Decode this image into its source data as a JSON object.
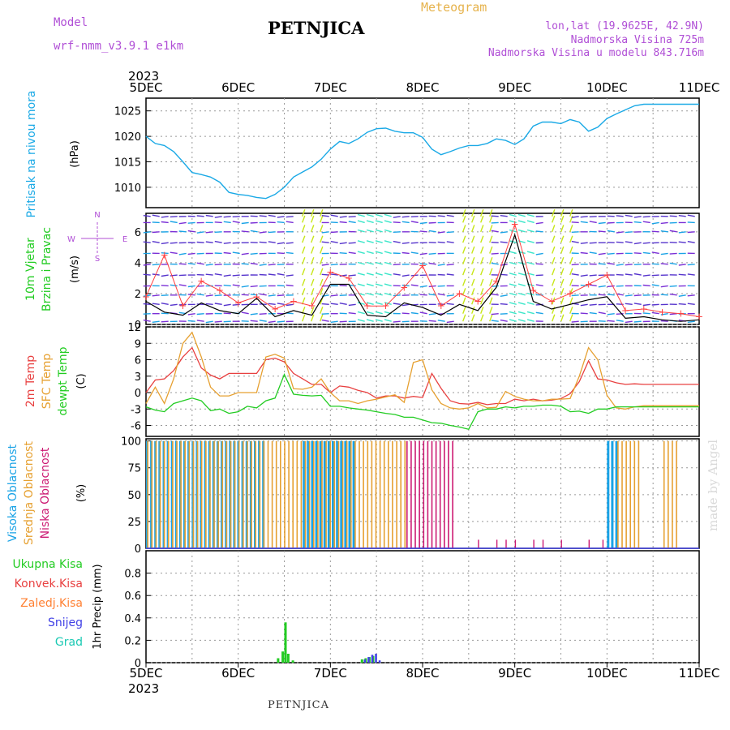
{
  "header": {
    "station": "PETNJICA",
    "meteogram": "Meteogram",
    "model_label": "Model",
    "model_name": "wrf-nmm_v3.9.1 e1km",
    "lonlat": "lon,lat (19.9625E, 42.9N)",
    "altitude": "Nadmorska Visina 725m",
    "model_altitude": "Nadmorska Visina u modelu 843.716m",
    "bottom_station": "PETNJICA",
    "watermark": "made by Angel"
  },
  "colors": {
    "pressure": "#1aa9e6",
    "wind_line": "#000000",
    "wind_gust": "#ff4040",
    "temp2m": "#e84040",
    "sfc_temp": "#e6a030",
    "dewpt": "#22cc22",
    "high_cloud": "#1aa3e6",
    "mid_cloud": "#e6a030",
    "low_cloud": "#cc1a73",
    "precip_total": "#22cc22",
    "precip_conv": "#e84040",
    "precip_frozen": "#ff8033",
    "snow": "#4040e6",
    "hail": "#1ac9b3",
    "axis_label_wind": "#22cc22",
    "compass": "#b04fd6"
  },
  "chart_data": [
    {
      "type": "line",
      "name": "pressure",
      "ylabel": "Pritisak na nivou mora",
      "unit": "(hPa)",
      "ylim": [
        1006,
        1027.5
      ],
      "yticks": [
        1010,
        1015,
        1020,
        1025
      ],
      "x": [
        0,
        0.1,
        0.2,
        0.3,
        0.4,
        0.5,
        0.6,
        0.7,
        0.8,
        0.9,
        1.0,
        1.1,
        1.2,
        1.3,
        1.4,
        1.5,
        1.6,
        1.7,
        1.8,
        1.9,
        2.0,
        2.1,
        2.2,
        2.3,
        2.4,
        2.5,
        2.6,
        2.7,
        2.8,
        2.9,
        3.0,
        3.1,
        3.2,
        3.3,
        3.4,
        3.5,
        3.6,
        3.7,
        3.8,
        3.9,
        4.0,
        4.1,
        4.2,
        4.3,
        4.4,
        4.5,
        4.6,
        4.7,
        4.8,
        4.9,
        5.0,
        5.1,
        5.2,
        5.3,
        5.4,
        5.5,
        5.6,
        5.7,
        5.8,
        5.9,
        6.0
      ],
      "values": [
        1020,
        1018.6,
        1018.2,
        1017,
        1015,
        1012.9,
        1012.5,
        1012,
        1011,
        1009,
        1008.6,
        1008.4,
        1008,
        1007.8,
        1008.6,
        1010,
        1012,
        1013,
        1014,
        1015.5,
        1017.5,
        1019,
        1018.6,
        1019.5,
        1020.8,
        1021.5,
        1021.6,
        1021,
        1020.7,
        1020.7,
        1019.8,
        1017.5,
        1016.4,
        1017,
        1017.7,
        1018.2,
        1018.2,
        1018.6,
        1019.5,
        1019.2,
        1018.4,
        1019.5,
        1022,
        1022.8,
        1022.8,
        1022.5,
        1023.3,
        1022.8,
        1021,
        1021.8,
        1023.5,
        1024.4,
        1025.2,
        1026,
        1026.3,
        1026.3,
        1026.3,
        1026.3,
        1026.3,
        1026.3,
        1026.3
      ]
    },
    {
      "type": "line",
      "name": "wind",
      "ylabel": "10m Vjetar Brzina i Pravac",
      "unit": "(m/s)",
      "ylim": [
        0,
        7.2
      ],
      "yticks": [
        0,
        2,
        4,
        6
      ],
      "compass": {
        "n": "N",
        "s": "S",
        "w": "W",
        "e": "E"
      },
      "x": [
        0,
        0.2,
        0.4,
        0.6,
        0.8,
        1.0,
        1.2,
        1.4,
        1.6,
        1.8,
        2.0,
        2.2,
        2.4,
        2.6,
        2.8,
        3.0,
        3.2,
        3.4,
        3.6,
        3.8,
        4.0,
        4.2,
        4.4,
        4.6,
        4.8,
        5.0,
        5.2,
        5.4,
        5.6,
        5.8,
        6.0
      ],
      "values": [
        1.5,
        0.8,
        0.6,
        1.4,
        0.9,
        0.7,
        1.7,
        0.5,
        0.9,
        0.6,
        2.6,
        2.6,
        0.6,
        0.5,
        1.4,
        1.1,
        0.6,
        1.3,
        0.9,
        2.4,
        5.8,
        1.5,
        1.0,
        1.3,
        1.6,
        1.8,
        0.4,
        0.5,
        0.3,
        0.2,
        0.3
      ],
      "gusts": [
        1.8,
        4.5,
        1.2,
        2.8,
        2.2,
        1.4,
        1.8,
        1.0,
        1.5,
        1.2,
        3.4,
        3.0,
        1.2,
        1.2,
        2.4,
        3.8,
        1.2,
        2.0,
        1.5,
        2.8,
        6.5,
        2.2,
        1.5,
        2.0,
        2.6,
        3.2,
        0.9,
        1.0,
        0.8,
        0.7,
        0.5
      ]
    },
    {
      "type": "line",
      "name": "temperature",
      "ylabels": [
        "2m Temp",
        "SFC Temp",
        "dewpt Temp"
      ],
      "unit": "(C)",
      "ylim": [
        -8,
        12
      ],
      "yticks": [
        -6,
        -3,
        0,
        3,
        6,
        9,
        12
      ],
      "x": [
        0,
        0.1,
        0.2,
        0.3,
        0.4,
        0.5,
        0.6,
        0.7,
        0.8,
        0.9,
        1.0,
        1.1,
        1.2,
        1.3,
        1.4,
        1.5,
        1.6,
        1.7,
        1.8,
        1.9,
        2.0,
        2.1,
        2.2,
        2.3,
        2.4,
        2.5,
        2.6,
        2.7,
        2.8,
        2.9,
        3.0,
        3.1,
        3.2,
        3.3,
        3.4,
        3.5,
        3.6,
        3.7,
        3.8,
        3.9,
        4.0,
        4.1,
        4.2,
        4.3,
        4.4,
        4.5,
        4.6,
        4.7,
        4.8,
        4.9,
        5.0,
        5.1,
        5.2,
        5.3,
        5.4,
        5.5,
        5.6,
        5.7,
        5.8,
        5.9,
        6.0
      ],
      "series": [
        {
          "name": "2m Temp",
          "color_key": "temp2m",
          "values": [
            0,
            2.3,
            2.5,
            4,
            6.5,
            8.2,
            4.5,
            3.2,
            2.5,
            3.5,
            3.5,
            3.5,
            3.5,
            6,
            6.3,
            5.6,
            3.5,
            2.5,
            1.5,
            1.5,
            0,
            1.2,
            1,
            0.4,
            0,
            -1,
            -0.6,
            -0.6,
            -1,
            -0.7,
            -0.9,
            3.5,
            0.8,
            -1.5,
            -2,
            -2.1,
            -1.8,
            -2.2,
            -2,
            -2,
            -1.2,
            -1.5,
            -1.2,
            -1.5,
            -1.4,
            -1.1,
            -0.2,
            2,
            5.8,
            2.5,
            2.3,
            1.8,
            1.5,
            1.6,
            1.5,
            1.5,
            1.5,
            1.5,
            1.5,
            1.5,
            1.5
          ]
        },
        {
          "name": "SFC Temp",
          "color_key": "sfc_temp",
          "values": [
            -2,
            1,
            -2,
            2.5,
            9,
            11,
            6.5,
            1,
            -0.6,
            -0.6,
            0,
            0,
            0,
            6.5,
            7,
            6.3,
            0.7,
            0.6,
            1,
            2.5,
            0,
            -1.5,
            -1.5,
            -2,
            -1.5,
            -1.2,
            -0.8,
            -0.4,
            -1.8,
            5.5,
            6,
            0.5,
            -2,
            -2.8,
            -3,
            -2.8,
            -2,
            -2.8,
            -2.7,
            0.2,
            -0.7,
            -1.2,
            -1.5,
            -1.5,
            -1.2,
            -1.2,
            -1.1,
            3,
            8.2,
            6,
            -0.5,
            -2.8,
            -3,
            -2.6,
            -2.4,
            -2.4,
            -2.4,
            -2.4,
            -2.4,
            -2.4,
            -2.4
          ]
        },
        {
          "name": "dewpt Temp",
          "color_key": "dewpt",
          "values": [
            -2.6,
            -3.2,
            -3.5,
            -2,
            -1.5,
            -1,
            -1.5,
            -3.3,
            -3,
            -3.8,
            -3.5,
            -2.5,
            -2.8,
            -1.5,
            -1,
            3.3,
            -0.3,
            -0.5,
            -0.6,
            -0.5,
            -2.5,
            -2.5,
            -2.8,
            -3,
            -3.2,
            -3.5,
            -3.8,
            -4,
            -4.5,
            -4.5,
            -5,
            -5.5,
            -5.6,
            -6,
            -6.3,
            -6.7,
            -3.5,
            -3,
            -3,
            -2.6,
            -2.8,
            -2.5,
            -2.5,
            -2.3,
            -2.3,
            -2.5,
            -3.5,
            -3.4,
            -3.8,
            -3,
            -3,
            -2.6,
            -2.6,
            -2.6,
            -2.6,
            -2.6,
            -2.6,
            -2.6,
            -2.6,
            -2.6,
            -2.6
          ]
        }
      ]
    },
    {
      "type": "bar",
      "name": "clouds",
      "ylabels": [
        "Visoka Oblacnost",
        "Srednja Oblacnost",
        "Niska Oblacnost"
      ],
      "unit": "(%)",
      "ylim": [
        0,
        102
      ],
      "yticks": [
        0,
        25,
        50,
        75,
        100
      ],
      "bands": [
        {
          "name": "Visoka Oblacnost",
          "color_key": "high_cloud",
          "ranges": [
            [
              0.0,
              1.3
            ],
            [
              1.7,
              2.25
            ],
            [
              5.0,
              5.1
            ]
          ]
        },
        {
          "name": "Srednja Oblacnost",
          "color_key": "mid_cloud",
          "ranges": [
            [
              0.0,
              2.8
            ],
            [
              5.1,
              5.35
            ],
            [
              5.6,
              5.75
            ]
          ]
        },
        {
          "name": "Niska Oblacnost",
          "color_key": "low_cloud",
          "ranges": [
            [
              2.8,
              3.3
            ]
          ],
          "sparse_x": [
            3.6,
            3.8,
            3.9,
            4.0,
            4.2,
            4.3,
            4.5,
            4.8,
            4.95
          ]
        }
      ]
    },
    {
      "type": "bar",
      "name": "precip",
      "ylabels": [
        "Ukupna Kisa",
        "Konvek.Kisa",
        "Zaledj.Kisa",
        "Snijeg",
        "Grad"
      ],
      "ylabel_colors": [
        "precip_total",
        "precip_conv",
        "precip_frozen",
        "snow",
        "hail"
      ],
      "unit": "1hr Precip (mm)",
      "ylim": [
        0,
        1.0
      ],
      "yticks": [
        0,
        0.2,
        0.4,
        0.6,
        0.8
      ],
      "total": {
        "x": [
          1.42,
          1.47,
          1.5,
          1.53,
          1.58,
          2.45
        ],
        "values": [
          0.04,
          0.1,
          0.36,
          0.08,
          0.02,
          0.01
        ]
      },
      "snow": {
        "x": [
          2.35,
          2.39,
          2.43,
          2.47,
          2.51
        ],
        "values": [
          0.03,
          0.05,
          0.07,
          0.08,
          0.02
        ]
      },
      "total_tail": {
        "x": [
          2.33,
          2.37,
          2.41,
          2.45
        ],
        "values": [
          0.03,
          0.04,
          0.05,
          0.06
        ]
      }
    }
  ],
  "time_axis": {
    "start_year": "2023",
    "labels": [
      "5DEC",
      "6DEC",
      "7DEC",
      "8DEC",
      "9DEC",
      "10DEC",
      "11DEC"
    ]
  }
}
